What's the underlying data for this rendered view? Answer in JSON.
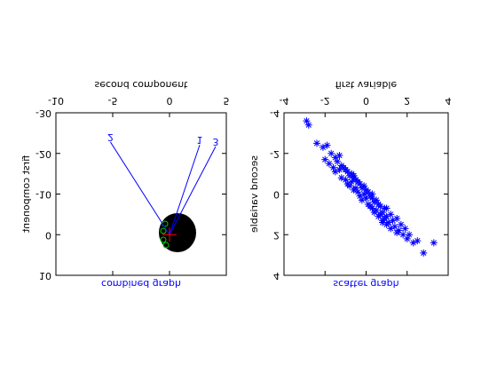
{
  "chart_data": [
    {
      "type": "biplot",
      "title": "combined graph",
      "xlabel": "second component",
      "ylabel": "first component",
      "xlim": [
        -10,
        5
      ],
      "xticks": [
        -10,
        -5,
        0,
        5
      ],
      "ylim": [
        -30,
        10
      ],
      "yticks": [
        -30,
        -20,
        -10,
        0,
        10
      ],
      "color": "#0000ff",
      "vectors": {
        "labels": [
          "1",
          "2",
          "3"
        ],
        "x": [
          2.66,
          -5.2,
          4.06
        ],
        "y": [
          -22.1,
          -22.8,
          -21.7
        ]
      }
    },
    {
      "type": "scatter",
      "title": "scatter graph",
      "xlabel": "first variable",
      "ylabel": "second variable",
      "xlim": [
        -4,
        4
      ],
      "xticks": [
        -4,
        -2,
        0,
        2,
        4
      ],
      "ylim": [
        -4,
        4
      ],
      "yticks": [
        -4,
        -2,
        0,
        2,
        4
      ],
      "color": "#0000ff",
      "x": [
        -2.9,
        -2.8,
        -2.4,
        -2.1,
        -2.0,
        -1.9,
        -1.8,
        -1.7,
        -1.6,
        -1.5,
        -1.5,
        -1.4,
        -1.3,
        -1.2,
        -1.2,
        -1.1,
        -1.0,
        -1.0,
        -0.9,
        -0.9,
        -0.8,
        -0.8,
        -0.7,
        -0.7,
        -0.6,
        -0.6,
        -0.5,
        -0.5,
        -0.4,
        -0.4,
        -0.3,
        -0.3,
        -0.2,
        -0.2,
        -0.1,
        -0.1,
        0.0,
        0.0,
        0.1,
        0.1,
        0.2,
        0.2,
        0.3,
        0.3,
        0.4,
        0.4,
        0.5,
        0.5,
        0.6,
        0.6,
        0.7,
        0.7,
        0.8,
        0.8,
        0.9,
        0.9,
        1.0,
        1.0,
        1.1,
        1.2,
        1.2,
        1.3,
        1.4,
        1.5,
        1.5,
        1.6,
        1.7,
        1.8,
        1.9,
        2.0,
        2.1,
        2.3,
        2.5,
        2.8,
        3.3,
        -1.3,
        0.3,
        1.0,
        -0.6,
        0.8
      ],
      "y": [
        -3.6,
        -3.4,
        -2.5,
        -2.3,
        -1.7,
        -2.4,
        -1.5,
        -2.0,
        -1.3,
        -1.8,
        -1.1,
        -1.6,
        -1.2,
        -1.4,
        -0.8,
        -1.3,
        -0.7,
        -1.2,
        -1.1,
        -0.5,
        -0.9,
        -0.4,
        -1.0,
        -0.6,
        -0.2,
        -0.8,
        -0.7,
        -0.3,
        -0.1,
        -0.6,
        -0.5,
        0.1,
        -0.3,
        0.3,
        0.0,
        -0.4,
        0.2,
        -0.2,
        0.5,
        -0.1,
        0.1,
        0.6,
        0.7,
        0.2,
        0.4,
        0.9,
        0.3,
        0.8,
        1.1,
        0.5,
        0.6,
        1.0,
        0.9,
        1.3,
        1.2,
        0.7,
        1.1,
        1.5,
        1.4,
        1.0,
        1.7,
        1.3,
        1.6,
        1.2,
        1.9,
        1.8,
        1.5,
        2.0,
        1.7,
        2.2,
        2.0,
        2.4,
        2.3,
        2.9,
        2.4,
        -1.9,
        0.0,
        0.7,
        -0.9,
        1.4
      ]
    }
  ]
}
